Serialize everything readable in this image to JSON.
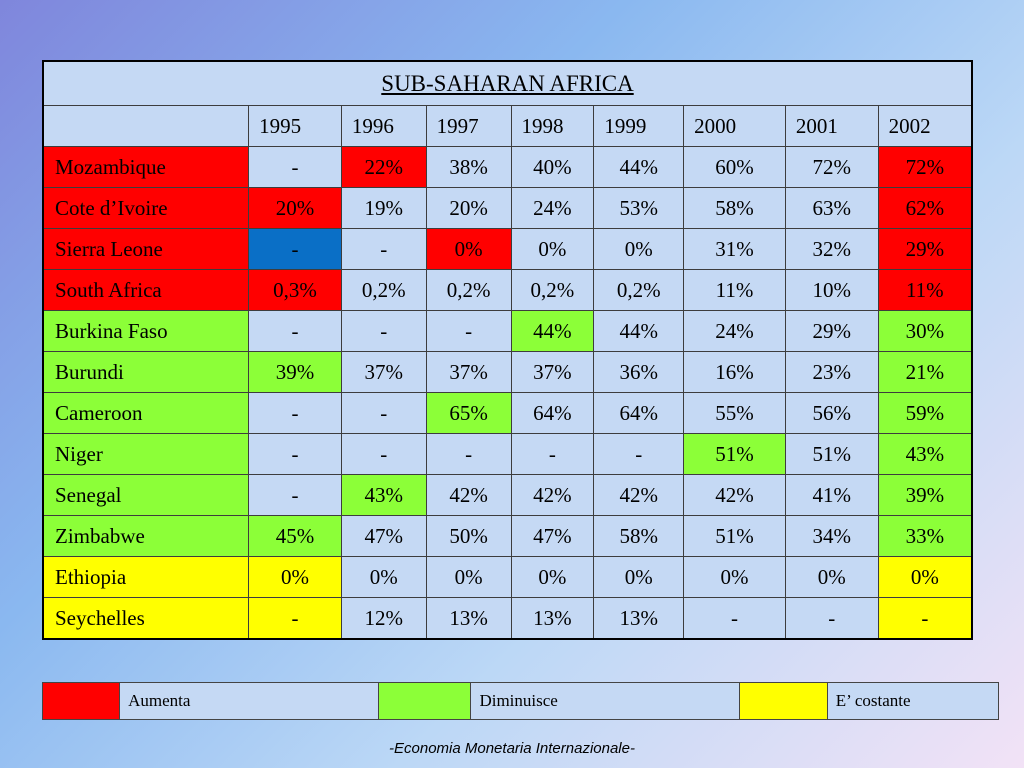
{
  "title": "SUB-SAHARAN AFRICA",
  "years": [
    "1995",
    "1996",
    "1997",
    "1998",
    "1999",
    "2000",
    "2001",
    "2002"
  ],
  "colors": {
    "red": "#ff0000",
    "green": "#8cff38",
    "yellow": "#ffff00",
    "blue": "#0a6fc6",
    "light": "#c5d9f4"
  },
  "rows": [
    {
      "country": "Mozambique",
      "c": "red",
      "values": [
        {
          "v": "-",
          "c": "light"
        },
        {
          "v": "22%",
          "c": "red"
        },
        {
          "v": "38%",
          "c": "light"
        },
        {
          "v": "40%",
          "c": "light"
        },
        {
          "v": "44%",
          "c": "light"
        },
        {
          "v": "60%",
          "c": "light"
        },
        {
          "v": "72%",
          "c": "light"
        },
        {
          "v": "72%",
          "c": "red"
        }
      ]
    },
    {
      "country": "Cote d’Ivoire",
      "c": "red",
      "values": [
        {
          "v": "20%",
          "c": "red"
        },
        {
          "v": "19%",
          "c": "light"
        },
        {
          "v": "20%",
          "c": "light"
        },
        {
          "v": "24%",
          "c": "light"
        },
        {
          "v": "53%",
          "c": "light"
        },
        {
          "v": "58%",
          "c": "light"
        },
        {
          "v": "63%",
          "c": "light"
        },
        {
          "v": "62%",
          "c": "red"
        }
      ]
    },
    {
      "country": "Sierra Leone",
      "c": "red",
      "values": [
        {
          "v": "-",
          "c": "blue"
        },
        {
          "v": "-",
          "c": "light"
        },
        {
          "v": "0%",
          "c": "red"
        },
        {
          "v": "0%",
          "c": "light"
        },
        {
          "v": "0%",
          "c": "light"
        },
        {
          "v": "31%",
          "c": "light"
        },
        {
          "v": "32%",
          "c": "light"
        },
        {
          "v": "29%",
          "c": "red"
        }
      ]
    },
    {
      "country": "South Africa",
      "c": "red",
      "values": [
        {
          "v": "0,3%",
          "c": "red"
        },
        {
          "v": "0,2%",
          "c": "light"
        },
        {
          "v": "0,2%",
          "c": "light"
        },
        {
          "v": "0,2%",
          "c": "light"
        },
        {
          "v": "0,2%",
          "c": "light"
        },
        {
          "v": "11%",
          "c": "light"
        },
        {
          "v": "10%",
          "c": "light"
        },
        {
          "v": "11%",
          "c": "red"
        }
      ]
    },
    {
      "country": "Burkina Faso",
      "c": "green",
      "values": [
        {
          "v": "-",
          "c": "light"
        },
        {
          "v": "-",
          "c": "light"
        },
        {
          "v": "-",
          "c": "light"
        },
        {
          "v": "44%",
          "c": "green"
        },
        {
          "v": "44%",
          "c": "light"
        },
        {
          "v": "24%",
          "c": "light"
        },
        {
          "v": "29%",
          "c": "light"
        },
        {
          "v": "30%",
          "c": "green"
        }
      ]
    },
    {
      "country": "Burundi",
      "c": "green",
      "values": [
        {
          "v": "39%",
          "c": "green"
        },
        {
          "v": "37%",
          "c": "light"
        },
        {
          "v": "37%",
          "c": "light"
        },
        {
          "v": "37%",
          "c": "light"
        },
        {
          "v": "36%",
          "c": "light"
        },
        {
          "v": "16%",
          "c": "light"
        },
        {
          "v": "23%",
          "c": "light"
        },
        {
          "v": "21%",
          "c": "green"
        }
      ]
    },
    {
      "country": "Cameroon",
      "c": "green",
      "values": [
        {
          "v": "-",
          "c": "light"
        },
        {
          "v": "-",
          "c": "light"
        },
        {
          "v": "65%",
          "c": "green"
        },
        {
          "v": "64%",
          "c": "light"
        },
        {
          "v": "64%",
          "c": "light"
        },
        {
          "v": "55%",
          "c": "light"
        },
        {
          "v": "56%",
          "c": "light"
        },
        {
          "v": "59%",
          "c": "green"
        }
      ]
    },
    {
      "country": "Niger",
      "c": "green",
      "values": [
        {
          "v": "-",
          "c": "light"
        },
        {
          "v": "-",
          "c": "light"
        },
        {
          "v": "-",
          "c": "light"
        },
        {
          "v": "-",
          "c": "light"
        },
        {
          "v": "-",
          "c": "light"
        },
        {
          "v": "51%",
          "c": "green"
        },
        {
          "v": "51%",
          "c": "light"
        },
        {
          "v": "43%",
          "c": "green"
        }
      ]
    },
    {
      "country": "Senegal",
      "c": "green",
      "values": [
        {
          "v": "-",
          "c": "light"
        },
        {
          "v": "43%",
          "c": "green"
        },
        {
          "v": "42%",
          "c": "light"
        },
        {
          "v": "42%",
          "c": "light"
        },
        {
          "v": "42%",
          "c": "light"
        },
        {
          "v": "42%",
          "c": "light"
        },
        {
          "v": "41%",
          "c": "light"
        },
        {
          "v": "39%",
          "c": "green"
        }
      ]
    },
    {
      "country": "Zimbabwe",
      "c": "green",
      "values": [
        {
          "v": "45%",
          "c": "green"
        },
        {
          "v": "47%",
          "c": "light"
        },
        {
          "v": "50%",
          "c": "light"
        },
        {
          "v": "47%",
          "c": "light"
        },
        {
          "v": "58%",
          "c": "light"
        },
        {
          "v": "51%",
          "c": "light"
        },
        {
          "v": "34%",
          "c": "light"
        },
        {
          "v": "33%",
          "c": "green"
        }
      ]
    },
    {
      "country": "Ethiopia",
      "c": "yellow",
      "values": [
        {
          "v": "0%",
          "c": "yellow"
        },
        {
          "v": "0%",
          "c": "light"
        },
        {
          "v": "0%",
          "c": "light"
        },
        {
          "v": "0%",
          "c": "light"
        },
        {
          "v": "0%",
          "c": "light"
        },
        {
          "v": "0%",
          "c": "light"
        },
        {
          "v": "0%",
          "c": "light"
        },
        {
          "v": "0%",
          "c": "yellow"
        }
      ]
    },
    {
      "country": "Seychelles",
      "c": "yellow",
      "values": [
        {
          "v": "-",
          "c": "yellow"
        },
        {
          "v": "12%",
          "c": "light"
        },
        {
          "v": "13%",
          "c": "light"
        },
        {
          "v": "13%",
          "c": "light"
        },
        {
          "v": "13%",
          "c": "light"
        },
        {
          "v": "-",
          "c": "light"
        },
        {
          "v": "-",
          "c": "light"
        },
        {
          "v": "-",
          "c": "yellow"
        }
      ]
    }
  ],
  "legend": [
    {
      "c": "red",
      "label": "Aumenta"
    },
    {
      "c": "green",
      "label": "Diminuisce"
    },
    {
      "c": "yellow",
      "label": "E’ costante"
    }
  ],
  "footer": "-Economia Monetaria Internazionale-"
}
